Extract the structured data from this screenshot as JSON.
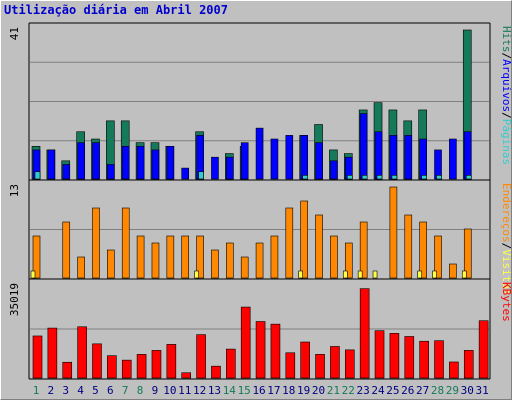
{
  "title": "Utilização diária em Abril 2007",
  "colors": {
    "hits": "#147a5a",
    "files": "#0000ff",
    "pages": "#33cccc",
    "visits": "#ffff44",
    "sites": "#ff8800",
    "kbytes": "#ff0000",
    "bg": "#c0c0c0",
    "weekend_label": "#147a5a",
    "weekday_label": "#000080"
  },
  "chart_data": [
    {
      "type": "bar",
      "name": "hits-files-pages",
      "ymax_label": "41",
      "ylim": [
        0,
        41
      ],
      "legend_right": [
        "Hits",
        "/",
        "Arquivos",
        "/",
        "Páginas"
      ],
      "categories": [
        "1",
        "2",
        "3",
        "4",
        "5",
        "6",
        "7",
        "8",
        "9",
        "10",
        "11",
        "12",
        "13",
        "14",
        "15",
        "16",
        "17",
        "18",
        "19",
        "20",
        "21",
        "22",
        "23",
        "24",
        "25",
        "26",
        "27",
        "28",
        "29",
        "30",
        "31"
      ],
      "series": [
        {
          "name": "Hits",
          "values": [
            9,
            8,
            5,
            13,
            11,
            16,
            16,
            10,
            10,
            9,
            0,
            13,
            0,
            7,
            9,
            0,
            0,
            0,
            12,
            15,
            8,
            7,
            19,
            21,
            19,
            16,
            19,
            0,
            0,
            41,
            0
          ]
        },
        {
          "name": "Arquivos",
          "values": [
            8,
            8,
            4,
            10,
            10,
            4,
            9,
            9,
            8,
            9,
            3,
            12,
            6,
            6,
            10,
            14,
            11,
            12,
            12,
            10,
            5,
            6,
            18,
            13,
            12,
            12,
            11,
            8,
            11,
            13,
            0
          ]
        },
        {
          "name": "Páginas",
          "values": [
            2,
            0,
            0,
            0,
            0,
            0,
            0,
            0,
            0,
            0,
            0,
            2,
            0,
            0,
            0,
            0,
            0,
            0,
            1,
            0,
            0,
            1,
            1,
            1,
            1,
            0,
            1,
            1,
            0,
            1,
            0
          ]
        }
      ]
    },
    {
      "type": "bar",
      "name": "visits-sites",
      "ymax_label": "13",
      "ylim": [
        0,
        13
      ],
      "legend_right": [
        "Endereços",
        "/",
        "Visitas"
      ],
      "categories": [
        "1",
        "2",
        "3",
        "4",
        "5",
        "6",
        "7",
        "8",
        "9",
        "10",
        "11",
        "12",
        "13",
        "14",
        "15",
        "16",
        "17",
        "18",
        "19",
        "20",
        "21",
        "22",
        "23",
        "24",
        "25",
        "26",
        "27",
        "28",
        "29",
        "30",
        "31"
      ],
      "series": [
        {
          "name": "Visitas",
          "values": [
            1,
            0,
            0,
            0,
            0,
            0,
            0,
            0,
            0,
            0,
            0,
            1,
            0,
            0,
            0,
            0,
            0,
            0,
            1,
            0,
            0,
            1,
            1,
            1,
            0,
            0,
            1,
            1,
            0,
            1,
            0
          ]
        },
        {
          "name": "Endereços",
          "values": [
            6,
            0,
            8,
            3,
            10,
            4,
            10,
            6,
            5,
            6,
            6,
            6,
            4,
            5,
            3,
            5,
            6,
            10,
            11,
            9,
            6,
            5,
            8,
            0,
            13,
            9,
            8,
            6,
            2,
            7,
            0
          ]
        }
      ]
    },
    {
      "type": "bar",
      "name": "kbytes",
      "ymax_label": "35019",
      "ylim": [
        0,
        35019
      ],
      "legend_right": [
        "KBytes"
      ],
      "categories": [
        "1",
        "2",
        "3",
        "4",
        "5",
        "6",
        "7",
        "8",
        "9",
        "10",
        "11",
        "12",
        "13",
        "14",
        "15",
        "16",
        "17",
        "18",
        "19",
        "20",
        "21",
        "22",
        "23",
        "24",
        "25",
        "26",
        "27",
        "28",
        "29",
        "30",
        "31"
      ],
      "series": [
        {
          "name": "KBytes",
          "values": [
            16000,
            19000,
            6000,
            19500,
            13000,
            8500,
            6800,
            9000,
            10500,
            12800,
            2000,
            16500,
            4500,
            11000,
            27000,
            21500,
            20500,
            9600,
            13700,
            9000,
            12000,
            10700,
            34000,
            18000,
            17000,
            15800,
            14000,
            14200,
            6100,
            10500,
            21800
          ]
        }
      ]
    }
  ],
  "x_labels": [
    "1",
    "2",
    "3",
    "4",
    "5",
    "6",
    "7",
    "8",
    "9",
    "10",
    "11",
    "12",
    "13",
    "14",
    "15",
    "16",
    "17",
    "18",
    "19",
    "20",
    "21",
    "22",
    "23",
    "24",
    "25",
    "26",
    "27",
    "28",
    "29",
    "30",
    "31"
  ],
  "weekend_days": [
    "1",
    "7",
    "8",
    "14",
    "15",
    "21",
    "22",
    "28",
    "29"
  ]
}
